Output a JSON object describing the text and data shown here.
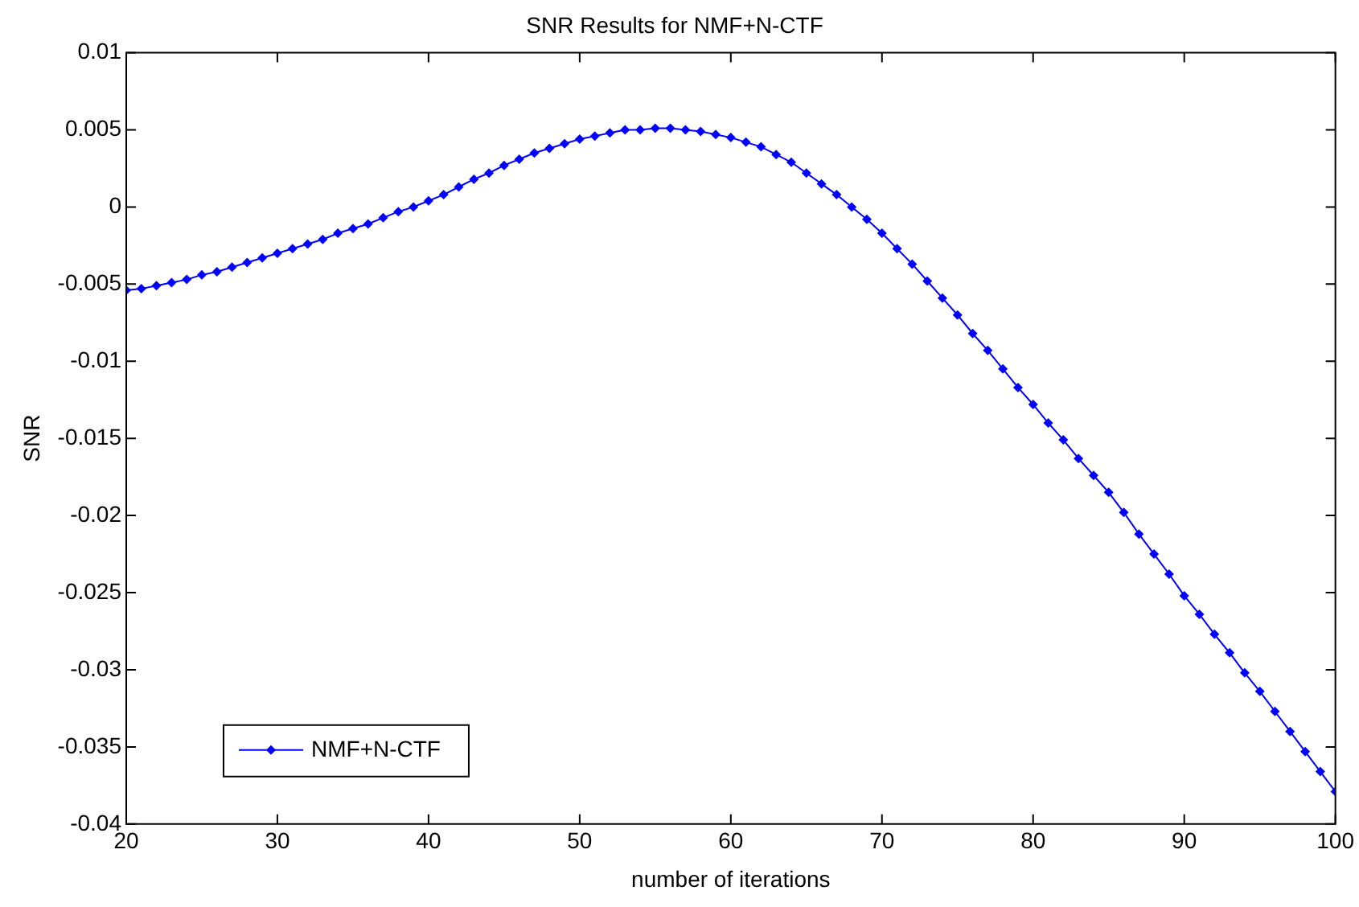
{
  "chart_data": {
    "type": "line",
    "title": "SNR Results for NMF+N-CTF",
    "xlabel": "number of iterations",
    "ylabel": "SNR",
    "x": [
      20,
      21,
      22,
      23,
      24,
      25,
      26,
      27,
      28,
      29,
      30,
      31,
      32,
      33,
      34,
      35,
      36,
      37,
      38,
      39,
      40,
      41,
      42,
      43,
      44,
      45,
      46,
      47,
      48,
      49,
      50,
      51,
      52,
      53,
      54,
      55,
      56,
      57,
      58,
      59,
      60,
      61,
      62,
      63,
      64,
      65,
      66,
      67,
      68,
      69,
      70,
      71,
      72,
      73,
      74,
      75,
      76,
      77,
      78,
      79,
      80,
      81,
      82,
      83,
      84,
      85,
      86,
      87,
      88,
      89,
      90,
      91,
      92,
      93,
      94,
      95,
      96,
      97,
      98,
      99,
      100
    ],
    "series": [
      {
        "name": "NMF+N-CTF",
        "color": "#0000ff",
        "values": [
          -0.0054,
          -0.0053,
          -0.0051,
          -0.0049,
          -0.0047,
          -0.0044,
          -0.0042,
          -0.0039,
          -0.0036,
          -0.0033,
          -0.003,
          -0.0027,
          -0.0024,
          -0.0021,
          -0.0017,
          -0.0014,
          -0.0011,
          -0.0007,
          -0.0003,
          0.0,
          0.0004,
          0.0008,
          0.0013,
          0.0018,
          0.0022,
          0.0027,
          0.0031,
          0.0035,
          0.0038,
          0.0041,
          0.0044,
          0.0046,
          0.0048,
          0.005,
          0.005,
          0.0051,
          0.0051,
          0.005,
          0.0049,
          0.0047,
          0.0045,
          0.0042,
          0.0039,
          0.0034,
          0.0029,
          0.0022,
          0.0015,
          0.0008,
          0.0,
          -0.0008,
          -0.0017,
          -0.0027,
          -0.0037,
          -0.0048,
          -0.0059,
          -0.007,
          -0.0082,
          -0.0093,
          -0.0105,
          -0.0117,
          -0.0128,
          -0.014,
          -0.0151,
          -0.0163,
          -0.0174,
          -0.0185,
          -0.0198,
          -0.0212,
          -0.0225,
          -0.0238,
          -0.0252,
          -0.0264,
          -0.0277,
          -0.0289,
          -0.0302,
          -0.0314,
          -0.0327,
          -0.034,
          -0.0353,
          -0.0366,
          -0.0379
        ]
      }
    ],
    "xlim": [
      20,
      100
    ],
    "xticks": [
      20,
      30,
      40,
      50,
      60,
      70,
      80,
      90,
      100
    ],
    "ylim": [
      -0.04,
      0.01
    ],
    "yticks": [
      -0.04,
      -0.035,
      -0.03,
      -0.025,
      -0.02,
      -0.015,
      -0.01,
      -0.005,
      0,
      0.005,
      0.01
    ],
    "grid": false,
    "legend": "bottom left",
    "marker": "diamond",
    "line_style": "solid"
  }
}
